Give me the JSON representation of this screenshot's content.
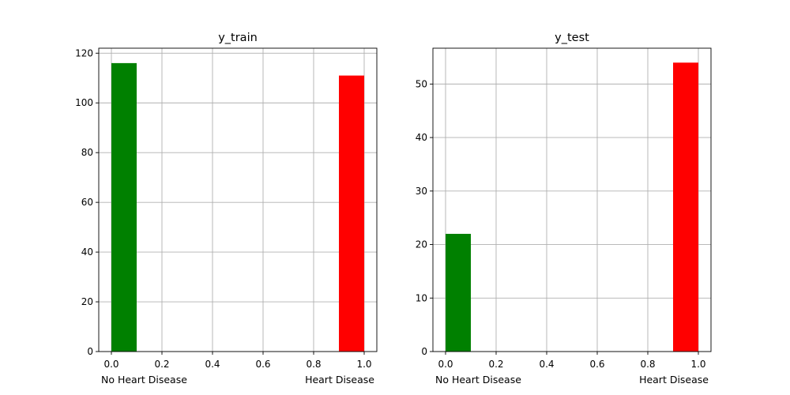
{
  "chart_data": [
    {
      "type": "bar",
      "title": "y_train",
      "xlim": [
        -0.05,
        1.05
      ],
      "ylim": [
        0,
        122
      ],
      "xticks": [
        "0.0",
        "0.2",
        "0.4",
        "0.6",
        "0.8",
        "1.0"
      ],
      "yticks": [
        "0",
        "20",
        "40",
        "60",
        "80",
        "100",
        "120"
      ],
      "grid": true,
      "bins": [
        {
          "x0": 0.0,
          "x1": 0.1,
          "value": 116,
          "color": "#008000"
        },
        {
          "x0": 0.9,
          "x1": 1.0,
          "value": 111,
          "color": "#ff0000"
        }
      ],
      "xlabel_left": "No Heart Disease",
      "xlabel_right": "Heart Disease"
    },
    {
      "type": "bar",
      "title": "y_test",
      "xlim": [
        -0.05,
        1.05
      ],
      "ylim": [
        0,
        56.7
      ],
      "xticks": [
        "0.0",
        "0.2",
        "0.4",
        "0.6",
        "0.8",
        "1.0"
      ],
      "yticks": [
        "0",
        "10",
        "20",
        "30",
        "40",
        "50"
      ],
      "grid": true,
      "bins": [
        {
          "x0": 0.0,
          "x1": 0.1,
          "value": 22,
          "color": "#008000"
        },
        {
          "x0": 0.9,
          "x1": 1.0,
          "value": 54,
          "color": "#ff0000"
        }
      ],
      "xlabel_left": "No Heart Disease",
      "xlabel_right": "Heart Disease"
    }
  ]
}
